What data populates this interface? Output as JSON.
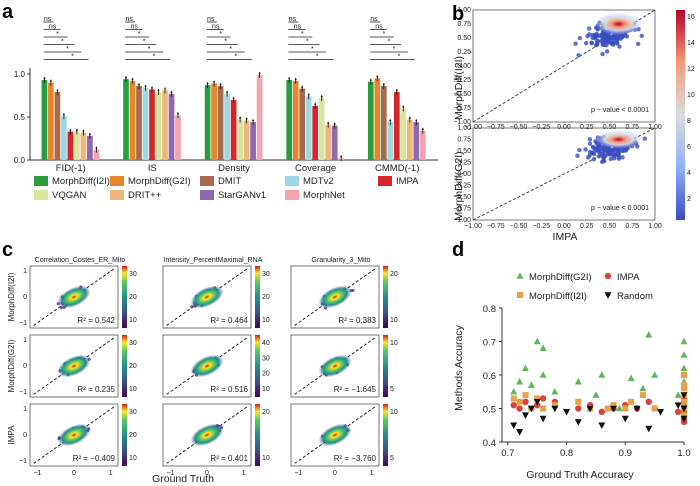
{
  "panels": {
    "a": "a",
    "b": "b",
    "c": "c",
    "d": "d"
  },
  "colors": {
    "MorphDiff(I2I)": "#2a9d3f",
    "VQGAN": "#d9e6a0",
    "MorphDiff(G2I)": "#e8852a",
    "DRIT++": "#f0b77a",
    "DMIT": "#a86b4f",
    "StarGANv1": "#8f68b0",
    "MDTv2": "#9fd7e2",
    "MorphNet": "#f4a3ad",
    "IMPA": "#d7262a"
  },
  "panel_a": {
    "chart_data": {
      "type": "bar",
      "categories": [
        "FID(-1)",
        "IS",
        "Density",
        "Coverage",
        "CMMD(-1)"
      ],
      "ylim": [
        0,
        1.0
      ],
      "yticks": [
        "0.0",
        "0.5",
        "1.0"
      ],
      "series": [
        {
          "name": "MorphDiff(I2I)",
          "values": [
            0.93,
            0.94,
            0.87,
            0.93,
            0.91
          ]
        },
        {
          "name": "MorphDiff(G2I)",
          "values": [
            0.9,
            0.92,
            0.89,
            0.92,
            0.95
          ]
        },
        {
          "name": "DMIT",
          "values": [
            0.79,
            0.86,
            0.86,
            0.83,
            0.86
          ]
        },
        {
          "name": "MDTv2",
          "values": [
            0.51,
            0.84,
            0.77,
            0.74,
            0.44
          ]
        },
        {
          "name": "IMPA",
          "values": [
            0.33,
            0.82,
            0.7,
            0.63,
            0.79
          ]
        },
        {
          "name": "VQGAN",
          "values": [
            0.33,
            0.79,
            0.47,
            0.72,
            0.6
          ]
        },
        {
          "name": "DRIT++",
          "values": [
            0.32,
            0.81,
            0.46,
            0.41,
            0.47
          ]
        },
        {
          "name": "StarGANv1",
          "values": [
            0.28,
            0.77,
            0.44,
            0.4,
            0.44
          ]
        },
        {
          "name": "MorphNet",
          "values": [
            0.12,
            0.52,
            0.99,
            0.02,
            0.34
          ]
        }
      ]
    },
    "sig_marks": [
      "ns",
      "ns",
      "*",
      "*",
      "*",
      "*"
    ],
    "legend": [
      [
        "MorphDiff(I2I)",
        "VQGAN"
      ],
      [
        "MorphDiff(G2I)",
        "DRIT++"
      ],
      [
        "DMIT",
        "StarGANv1"
      ],
      [
        "MDTv2",
        "MorphNet"
      ],
      [
        "IMPA"
      ]
    ]
  },
  "panel_b": {
    "ylabel_top": "MorphDiff(I2I)",
    "ylabel_bottom": "MorphDiff(G2I)",
    "xlabel": "IMPA",
    "pvalue": "p − value < 0.0001",
    "xticks": [
      "−1.00",
      "−0.75",
      "−0.50",
      "−0.25",
      "0.00",
      "0.25",
      "0.50",
      "0.75",
      "1.00"
    ],
    "yticks": [
      "1.00",
      "0.75",
      "0.50",
      "0.25",
      "0.00",
      "−0.25",
      "−0.50",
      "−0.75",
      "−1.00"
    ],
    "colorbar_ticks": [
      "16",
      "14",
      "12",
      "10",
      "8",
      "6",
      "4",
      "2"
    ]
  },
  "panel_c": {
    "columns": [
      "Correlation_Costes_ER_Mito",
      "Intensity_PercentMaximal_RNA",
      "Granularity_3_Mito"
    ],
    "rows": [
      "MorphDiff(I2I)",
      "MorphDiff(G2I)",
      "IMPA"
    ],
    "xlabel": "Ground Truth",
    "xticks": [
      "−1",
      "0",
      "1"
    ],
    "yticks": [
      "1",
      "0",
      "−1"
    ],
    "r2": [
      [
        "R² = 0.542",
        "R² = 0.464",
        "R² = 0.383"
      ],
      [
        "R² = 0.235",
        "R² = 0.516",
        "R² = −1.645"
      ],
      [
        "R² = −0.409",
        "R² = 0.401",
        "R² = −3.760"
      ]
    ],
    "colorbars": [
      [
        [
          "30",
          "20",
          "10"
        ],
        [
          "30",
          "20",
          "10"
        ],
        [
          "20",
          "10"
        ]
      ],
      [
        [
          "30",
          "20",
          "10"
        ],
        [
          "40",
          "30",
          "20",
          "10"
        ],
        [
          "10",
          "5"
        ]
      ],
      [
        [
          "30",
          "20",
          "10"
        ],
        [
          "20",
          "10"
        ],
        [
          "10",
          "5"
        ]
      ]
    ]
  },
  "panel_d": {
    "chart_data": {
      "type": "scatter",
      "xlabel": "Ground Truth Accuracy",
      "ylabel": "Methods Accuracy",
      "xlim": [
        0.69,
        1.0
      ],
      "ylim": [
        0.4,
        0.8
      ],
      "xticks": [
        "0.7",
        "0.8",
        "0.9",
        "1.0"
      ],
      "yticks": [
        "0.8",
        "0.7",
        "0.6",
        "0.5",
        "0.4"
      ],
      "series": [
        {
          "name": "MorphDiff(G2I)",
          "marker": "triangle-up",
          "x": [
            0.71,
            0.72,
            0.73,
            0.74,
            0.75,
            0.76,
            0.76,
            0.78,
            0.82,
            0.85,
            0.86,
            0.89,
            0.91,
            0.93,
            0.94,
            0.95,
            0.99,
            1.0,
            1.0,
            1.0,
            1.0
          ],
          "y": [
            0.55,
            0.58,
            0.62,
            0.57,
            0.7,
            0.68,
            0.6,
            0.55,
            0.58,
            0.54,
            0.6,
            0.5,
            0.59,
            0.56,
            0.72,
            0.6,
            0.54,
            0.7,
            0.66,
            0.62,
            0.58
          ]
        },
        {
          "name": "IMPA",
          "marker": "circle",
          "x": [
            0.71,
            0.72,
            0.73,
            0.74,
            0.75,
            0.76,
            0.78,
            0.82,
            0.84,
            0.86,
            0.88,
            0.9,
            0.92,
            0.94,
            0.95,
            0.99,
            1.0,
            1.0,
            1.0,
            1.0,
            1.0,
            1.0
          ],
          "y": [
            0.51,
            0.5,
            0.52,
            0.5,
            0.51,
            0.53,
            0.52,
            0.5,
            0.51,
            0.49,
            0.5,
            0.51,
            0.5,
            0.52,
            0.5,
            0.49,
            0.53,
            0.5,
            0.47,
            0.51,
            0.49,
            0.46
          ]
        },
        {
          "name": "MorphDiff(I2I)",
          "marker": "square",
          "x": [
            0.71,
            0.72,
            0.73,
            0.74,
            0.75,
            0.76,
            0.78,
            0.82,
            0.84,
            0.87,
            0.88,
            0.9,
            0.91,
            0.93,
            0.95,
            1.0,
            1.0,
            1.0,
            1.0,
            1.0,
            1.0,
            1.0
          ],
          "y": [
            0.53,
            0.52,
            0.54,
            0.5,
            0.53,
            0.5,
            0.51,
            0.52,
            0.5,
            0.5,
            0.51,
            0.5,
            0.52,
            0.54,
            0.5,
            0.6,
            0.57,
            0.56,
            0.54,
            0.52,
            0.5,
            0.48
          ]
        },
        {
          "name": "Random",
          "marker": "triangle-down",
          "x": [
            0.71,
            0.72,
            0.73,
            0.74,
            0.75,
            0.76,
            0.78,
            0.8,
            0.82,
            0.84,
            0.86,
            0.88,
            0.9,
            0.92,
            0.94,
            0.96,
            0.99,
            1.0,
            1.0,
            1.0
          ],
          "y": [
            0.45,
            0.43,
            0.48,
            0.5,
            0.52,
            0.47,
            0.5,
            0.49,
            0.46,
            0.5,
            0.45,
            0.5,
            0.47,
            0.5,
            0.44,
            0.49,
            0.51,
            0.54,
            0.47,
            0.5
          ]
        }
      ]
    },
    "legend": [
      "MorphDiff(G2I)",
      "IMPA",
      "MorphDiff(I2I)",
      "Random"
    ]
  }
}
